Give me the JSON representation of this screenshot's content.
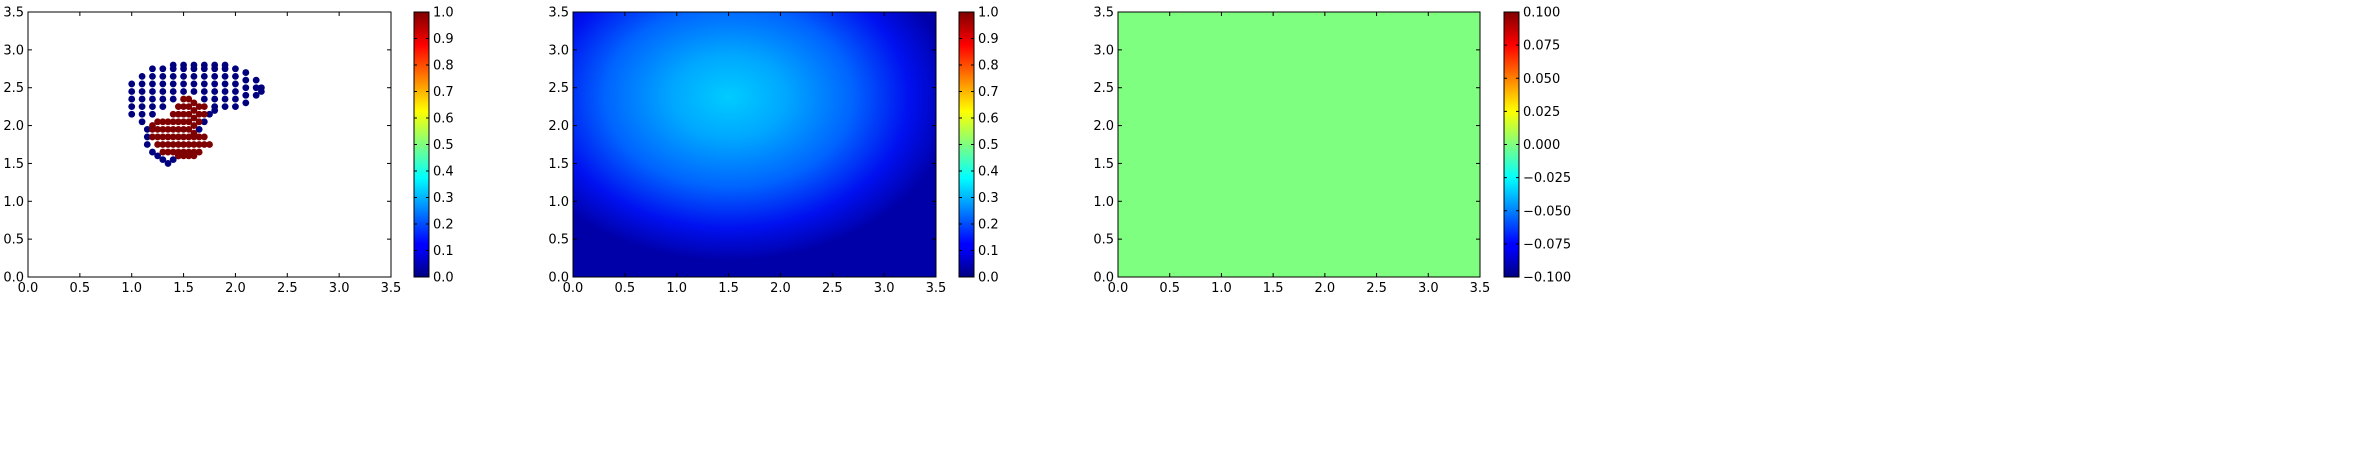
{
  "chart_data": [
    {
      "type": "scatter",
      "title": "",
      "xlabel": "",
      "ylabel": "",
      "xlim": [
        0,
        3.5
      ],
      "ylim": [
        0,
        3.5
      ],
      "xticks": [
        "0.0",
        "0.5",
        "1.0",
        "1.5",
        "2.0",
        "2.5",
        "3.0",
        "3.5"
      ],
      "yticks": [
        "0.0",
        "0.5",
        "1.0",
        "1.5",
        "2.0",
        "2.5",
        "3.0",
        "3.5"
      ],
      "colorbar": {
        "min": 0.0,
        "max": 1.0,
        "colormap": "jet",
        "ticks": [
          "0.0",
          "0.1",
          "0.2",
          "0.3",
          "0.4",
          "0.5",
          "0.6",
          "0.7",
          "0.8",
          "0.9",
          "1.0"
        ]
      },
      "series": [
        {
          "value": 0.0,
          "color": "#00007f",
          "points": [
            [
              1.0,
              2.15
            ],
            [
              1.0,
              2.25
            ],
            [
              1.0,
              2.35
            ],
            [
              1.0,
              2.45
            ],
            [
              1.0,
              2.55
            ],
            [
              1.1,
              2.05
            ],
            [
              1.1,
              2.15
            ],
            [
              1.1,
              2.25
            ],
            [
              1.1,
              2.35
            ],
            [
              1.1,
              2.45
            ],
            [
              1.1,
              2.55
            ],
            [
              1.1,
              2.65
            ],
            [
              1.2,
              2.15
            ],
            [
              1.2,
              2.25
            ],
            [
              1.2,
              2.35
            ],
            [
              1.2,
              2.45
            ],
            [
              1.2,
              2.55
            ],
            [
              1.2,
              2.65
            ],
            [
              1.2,
              2.75
            ],
            [
              1.3,
              2.25
            ],
            [
              1.3,
              2.35
            ],
            [
              1.3,
              2.45
            ],
            [
              1.3,
              2.55
            ],
            [
              1.3,
              2.65
            ],
            [
              1.3,
              2.75
            ],
            [
              1.4,
              2.35
            ],
            [
              1.4,
              2.45
            ],
            [
              1.4,
              2.55
            ],
            [
              1.4,
              2.65
            ],
            [
              1.4,
              2.75
            ],
            [
              1.4,
              2.8
            ],
            [
              1.5,
              2.45
            ],
            [
              1.5,
              2.55
            ],
            [
              1.5,
              2.65
            ],
            [
              1.5,
              2.75
            ],
            [
              1.5,
              2.8
            ],
            [
              1.6,
              2.45
            ],
            [
              1.6,
              2.55
            ],
            [
              1.6,
              2.65
            ],
            [
              1.6,
              2.75
            ],
            [
              1.6,
              2.8
            ],
            [
              1.7,
              2.35
            ],
            [
              1.7,
              2.45
            ],
            [
              1.7,
              2.55
            ],
            [
              1.7,
              2.65
            ],
            [
              1.7,
              2.75
            ],
            [
              1.7,
              2.8
            ],
            [
              1.8,
              2.25
            ],
            [
              1.8,
              2.35
            ],
            [
              1.8,
              2.45
            ],
            [
              1.8,
              2.55
            ],
            [
              1.8,
              2.65
            ],
            [
              1.8,
              2.75
            ],
            [
              1.8,
              2.8
            ],
            [
              1.9,
              2.25
            ],
            [
              1.9,
              2.35
            ],
            [
              1.9,
              2.45
            ],
            [
              1.9,
              2.55
            ],
            [
              1.9,
              2.65
            ],
            [
              1.9,
              2.75
            ],
            [
              1.9,
              2.8
            ],
            [
              2.0,
              2.25
            ],
            [
              2.0,
              2.35
            ],
            [
              2.0,
              2.45
            ],
            [
              2.0,
              2.55
            ],
            [
              2.0,
              2.65
            ],
            [
              2.0,
              2.75
            ],
            [
              2.1,
              2.3
            ],
            [
              2.1,
              2.4
            ],
            [
              2.1,
              2.5
            ],
            [
              2.1,
              2.6
            ],
            [
              2.1,
              2.7
            ],
            [
              2.2,
              2.4
            ],
            [
              2.2,
              2.5
            ],
            [
              2.2,
              2.6
            ],
            [
              2.25,
              2.45
            ],
            [
              2.25,
              2.5
            ],
            [
              1.15,
              1.95
            ],
            [
              1.15,
              1.85
            ],
            [
              1.15,
              1.75
            ],
            [
              1.2,
              1.65
            ],
            [
              1.25,
              1.6
            ],
            [
              1.3,
              1.55
            ],
            [
              1.35,
              1.5
            ],
            [
              1.4,
              1.55
            ],
            [
              1.45,
              1.6
            ],
            [
              1.65,
              1.95
            ],
            [
              1.7,
              2.05
            ],
            [
              1.75,
              2.15
            ],
            [
              1.8,
              2.2
            ]
          ]
        },
        {
          "value": 1.0,
          "color": "#7f0000",
          "points": [
            [
              1.5,
              2.35
            ],
            [
              1.55,
              2.35
            ],
            [
              1.6,
              2.3
            ],
            [
              1.65,
              2.25
            ],
            [
              1.7,
              2.25
            ],
            [
              1.45,
              2.25
            ],
            [
              1.5,
              2.25
            ],
            [
              1.55,
              2.25
            ],
            [
              1.6,
              2.2
            ],
            [
              1.65,
              2.15
            ],
            [
              1.7,
              2.15
            ],
            [
              1.4,
              2.15
            ],
            [
              1.45,
              2.15
            ],
            [
              1.5,
              2.15
            ],
            [
              1.55,
              2.15
            ],
            [
              1.6,
              2.1
            ],
            [
              1.65,
              2.05
            ],
            [
              1.2,
              2.0
            ],
            [
              1.25,
              2.05
            ],
            [
              1.3,
              2.05
            ],
            [
              1.35,
              2.05
            ],
            [
              1.4,
              2.05
            ],
            [
              1.45,
              2.05
            ],
            [
              1.5,
              2.05
            ],
            [
              1.55,
              2.05
            ],
            [
              1.6,
              2.0
            ],
            [
              1.2,
              1.95
            ],
            [
              1.25,
              1.95
            ],
            [
              1.3,
              1.95
            ],
            [
              1.35,
              1.95
            ],
            [
              1.4,
              1.95
            ],
            [
              1.45,
              1.95
            ],
            [
              1.5,
              1.95
            ],
            [
              1.55,
              1.95
            ],
            [
              1.6,
              1.9
            ],
            [
              1.2,
              1.85
            ],
            [
              1.25,
              1.85
            ],
            [
              1.3,
              1.85
            ],
            [
              1.35,
              1.85
            ],
            [
              1.4,
              1.85
            ],
            [
              1.45,
              1.85
            ],
            [
              1.5,
              1.85
            ],
            [
              1.55,
              1.85
            ],
            [
              1.6,
              1.85
            ],
            [
              1.65,
              1.85
            ],
            [
              1.7,
              1.85
            ],
            [
              1.25,
              1.75
            ],
            [
              1.3,
              1.75
            ],
            [
              1.35,
              1.75
            ],
            [
              1.4,
              1.75
            ],
            [
              1.45,
              1.75
            ],
            [
              1.5,
              1.75
            ],
            [
              1.55,
              1.75
            ],
            [
              1.6,
              1.75
            ],
            [
              1.65,
              1.75
            ],
            [
              1.7,
              1.75
            ],
            [
              1.75,
              1.75
            ],
            [
              1.3,
              1.65
            ],
            [
              1.35,
              1.65
            ],
            [
              1.4,
              1.65
            ],
            [
              1.45,
              1.65
            ],
            [
              1.5,
              1.65
            ],
            [
              1.55,
              1.65
            ],
            [
              1.6,
              1.65
            ],
            [
              1.65,
              1.65
            ],
            [
              1.45,
              1.6
            ],
            [
              1.5,
              1.6
            ],
            [
              1.55,
              1.6
            ],
            [
              1.6,
              1.6
            ]
          ]
        }
      ]
    },
    {
      "type": "heatmap",
      "title": "",
      "xlabel": "",
      "ylabel": "",
      "xlim": [
        0,
        3.5
      ],
      "ylim": [
        0,
        3.5
      ],
      "xticks": [
        "0.0",
        "0.5",
        "1.0",
        "1.5",
        "2.0",
        "2.5",
        "3.0",
        "3.5"
      ],
      "yticks": [
        "0.0",
        "0.5",
        "1.0",
        "1.5",
        "2.0",
        "2.5",
        "3.0",
        "3.5"
      ],
      "colorbar": {
        "min": 0.0,
        "max": 1.0,
        "colormap": "jet",
        "ticks": [
          "0.0",
          "0.1",
          "0.2",
          "0.3",
          "0.4",
          "0.5",
          "0.6",
          "0.7",
          "0.8",
          "0.9",
          "1.0"
        ]
      },
      "field": {
        "peak_value": 0.35,
        "peak_center": [
          1.5,
          2.4
        ],
        "edge_value": 0.05
      }
    },
    {
      "type": "heatmap",
      "title": "",
      "xlabel": "",
      "ylabel": "",
      "xlim": [
        0,
        3.5
      ],
      "ylim": [
        0,
        3.5
      ],
      "xticks": [
        "0.0",
        "0.5",
        "1.0",
        "1.5",
        "2.0",
        "2.5",
        "3.0",
        "3.5"
      ],
      "yticks": [
        "0.0",
        "0.5",
        "1.0",
        "1.5",
        "2.0",
        "2.5",
        "3.0",
        "3.5"
      ],
      "colorbar": {
        "min": -0.1,
        "max": 0.1,
        "colormap": "jet",
        "ticks": [
          "−0.100",
          "−0.075",
          "−0.050",
          "−0.025",
          "0.000",
          "0.025",
          "0.050",
          "0.075",
          "0.100"
        ]
      },
      "field": {
        "uniform_value": 0.0,
        "fill_color": "#7fff7f"
      }
    }
  ]
}
